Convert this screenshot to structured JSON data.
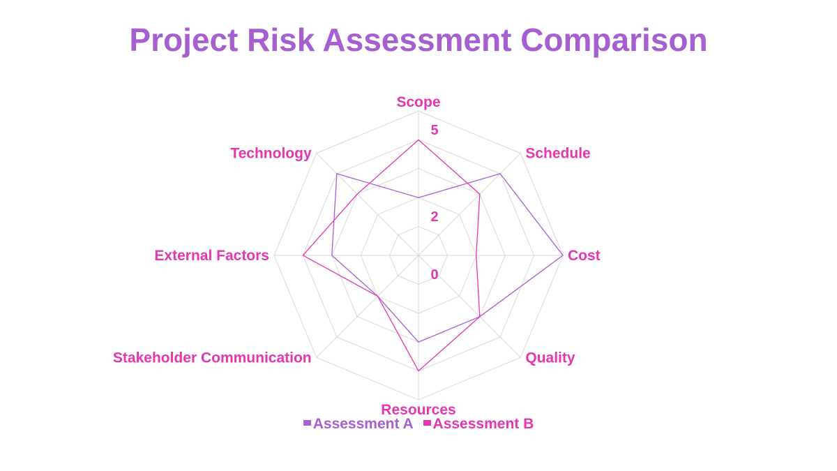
{
  "colors": {
    "title": "#A55FD0",
    "label": "#E535B0",
    "grid": "#d9d9d9",
    "series_a": "#A55FD0",
    "series_b": "#E535B0"
  },
  "chart_data": {
    "type": "radar",
    "title": "Project Risk Assessment Comparison",
    "categories": [
      "Scope",
      "Schedule",
      "Cost",
      "Quality",
      "Resources",
      "Stakeholder Communication",
      "External Factors",
      "Technology"
    ],
    "rlim": [
      0,
      5
    ],
    "tick_labels": [
      "0",
      "2",
      "5"
    ],
    "series": [
      {
        "name": "Assessment A",
        "values": [
          2,
          4,
          5,
          3,
          3,
          2,
          3,
          4
        ]
      },
      {
        "name": "Assessment B",
        "values": [
          4,
          3,
          2,
          3,
          4,
          2,
          4,
          3
        ]
      }
    ],
    "legend_position": "bottom"
  }
}
